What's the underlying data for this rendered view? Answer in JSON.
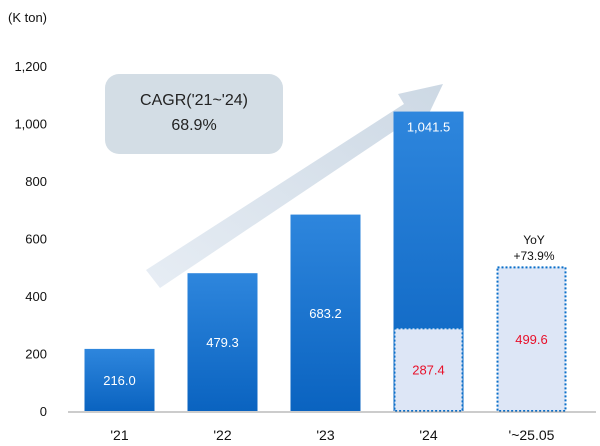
{
  "chart_data": {
    "type": "bar",
    "unit_label": "(K ton)",
    "categories": [
      "'21",
      "'22",
      "'23",
      "'24",
      "'~25.05"
    ],
    "series": [
      {
        "values": [
          216.0,
          479.3,
          683.2,
          1041.5,
          null
        ],
        "labels": [
          "216.0",
          "479.3",
          "683.2",
          "1,041.5",
          ""
        ],
        "color": "#0a6fc9",
        "style": "solid"
      },
      {
        "values": [
          null,
          null,
          null,
          287.4,
          499.6
        ],
        "labels": [
          "",
          "",
          "",
          "287.4",
          "499.6"
        ],
        "color": "#dde6f6",
        "style": "dotted-outline",
        "label_color": "#e8102a"
      }
    ],
    "ylim": [
      0,
      1200
    ],
    "yticks": [
      0,
      200,
      400,
      600,
      800,
      1000,
      1200
    ],
    "ytick_labels": [
      "0",
      "200",
      "400",
      "600",
      "800",
      "1,000",
      "1,200"
    ],
    "grid": false,
    "annotations": {
      "cagr": {
        "line1": "CAGR('21~'24)",
        "line2": "68.9%"
      },
      "yoy": {
        "line1": "YoY",
        "line2": "+73.9%"
      }
    }
  }
}
